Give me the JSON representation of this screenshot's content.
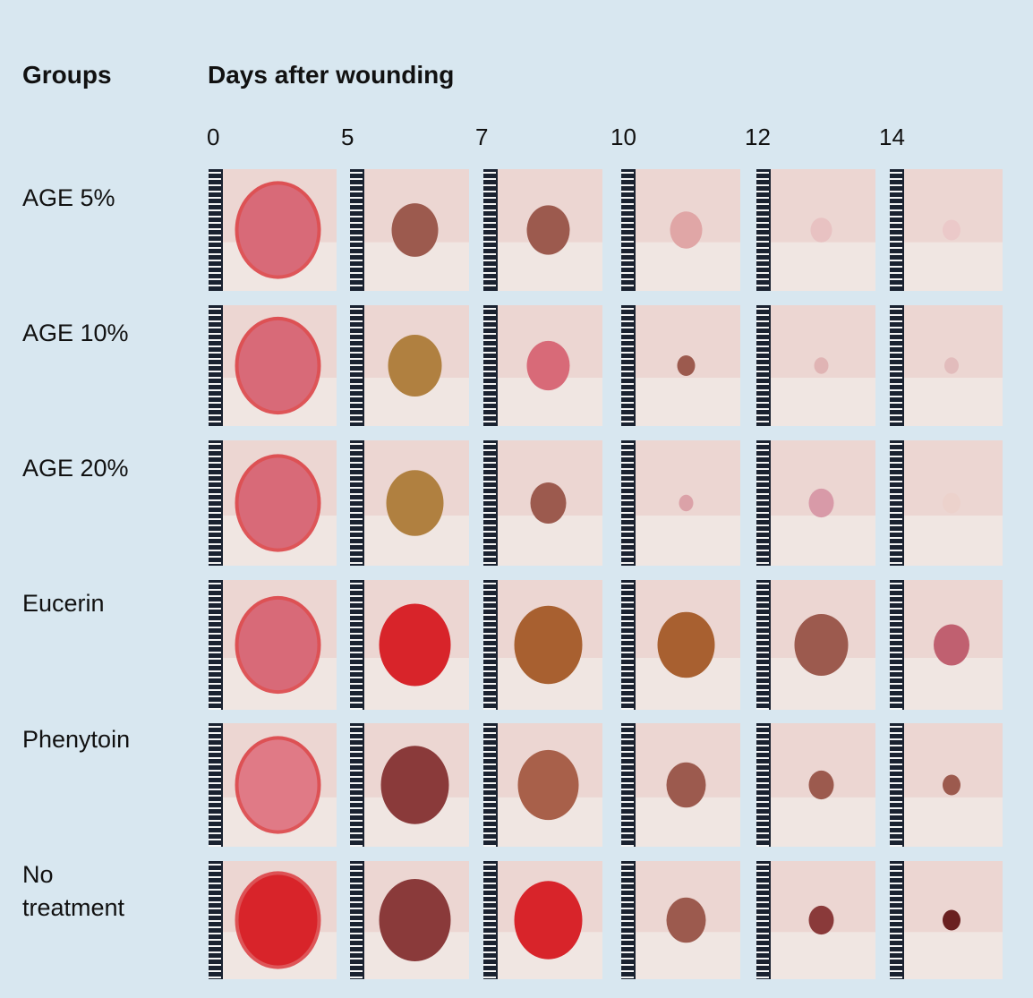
{
  "headers": {
    "groups": "Groups",
    "days": "Days after wounding"
  },
  "days": [
    "0",
    "5",
    "7",
    "10",
    "12",
    "14"
  ],
  "groups": [
    "AGE 5%",
    "AGE 10%",
    "AGE 20%",
    "Eucerin",
    "Phenytoin",
    "No\ntreatment"
  ],
  "wound_colors": {
    "skin": "#ecd6d2",
    "ruler": "#1a2230",
    "healing_scab": "#9c5a4e",
    "fresh_wound": "#d86a78",
    "bleeding_edge": "#d8242a"
  }
}
